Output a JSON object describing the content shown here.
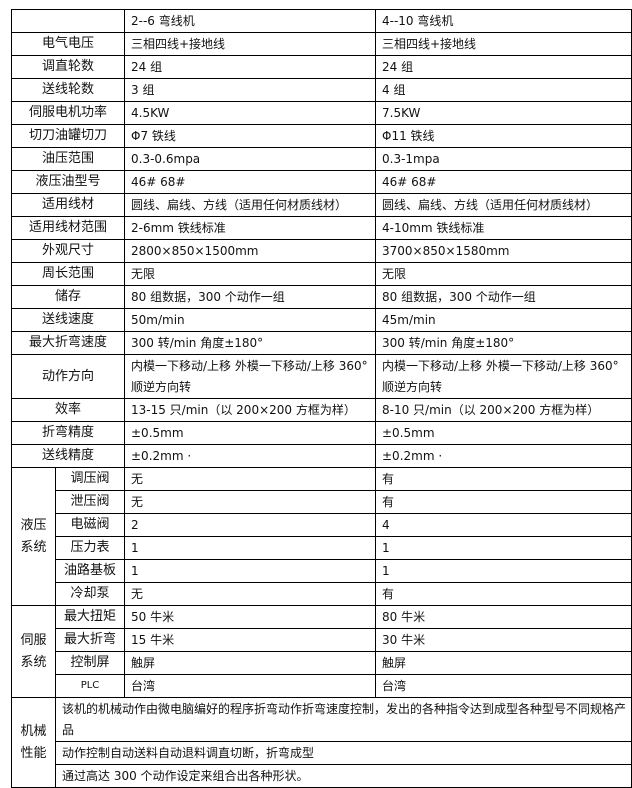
{
  "header": [
    "",
    "2--6 弯线机",
    "4--10 弯线机"
  ],
  "rows": [
    {
      "label": "电气电压",
      "a": "三相四线+接地线",
      "b": "三相四线+接地线"
    },
    {
      "label": "调直轮数",
      "a": "24 组",
      "b": "24 组"
    },
    {
      "label": "送线轮数",
      "a": "3 组",
      "b": "4 组"
    },
    {
      "label": "伺服电机功率",
      "a": "4.5KW",
      "b": "7.5KW"
    },
    {
      "label": "切刀油罐切刀",
      "a": "Φ7 铁线",
      "b": "Φ11 铁线"
    },
    {
      "label": "油压范围",
      "a": "0.3-0.6mpa",
      "b": "0.3-1mpa"
    },
    {
      "label": "液压油型号",
      "a": "46# 68#",
      "b": "46# 68#"
    },
    {
      "label": "适用线材",
      "a": "圆线、扁线、方线（适用任何材质线材）",
      "b": "圆线、扁线、方线（适用任何材质线材）"
    },
    {
      "label": "适用线材范围",
      "a": "2-6mm 铁线标准",
      "b": "4-10mm 铁线标准"
    },
    {
      "label": "外观尺寸",
      "a": "2800×850×1500mm",
      "b": "3700×850×1580mm"
    },
    {
      "label": "周长范围",
      "a": "无限",
      "b": "无限"
    },
    {
      "label": "储存",
      "a": "80 组数据，300 个动作一组",
      "b": "80 组数据，300 个动作一组"
    },
    {
      "label": "送线速度",
      "a": "50m/min",
      "b": "45m/min"
    },
    {
      "label": "最大折弯速度",
      "a": "300 转/min  角度±180°",
      "b": "300 转/min  角度±180°"
    },
    {
      "label": "动作方向",
      "a": "内模一下移动/上移 外模一下移动/上移 360° 顺逆方向转",
      "b": "内模一下移动/上移 外模一下移动/上移 360° 顺逆方向转",
      "tall": true
    },
    {
      "label": "效率",
      "a": "13-15 只/min（以 200×200 方框为样）",
      "b": "8-10 只/min（以 200×200 方框为样）"
    },
    {
      "label": "折弯精度",
      "a": "±0.5mm",
      "b": "±0.5mm"
    },
    {
      "label": "送线精度",
      "a": "±0.2mm ·",
      "b": "±0.2mm ·"
    }
  ],
  "groups": [
    {
      "name": "液压系统",
      "rows": [
        {
          "label": "调压阀",
          "a": "无",
          "b": "有"
        },
        {
          "label": "泄压阀",
          "a": "无",
          "b": "有"
        },
        {
          "label": "电磁阀",
          "a": "2",
          "b": "4"
        },
        {
          "label": "压力表",
          "a": "1",
          "b": "1"
        },
        {
          "label": "油路基板",
          "a": "1",
          "b": "1"
        },
        {
          "label": "冷却泵",
          "a": "无",
          "b": "有"
        }
      ]
    },
    {
      "name": "伺服系统",
      "rows": [
        {
          "label": "最大扭矩",
          "a": "50 牛米",
          "b": "80 牛米"
        },
        {
          "label": "最大折弯",
          "a": "15 牛米",
          "b": "30 牛米"
        },
        {
          "label": "控制屏",
          "a": "触屏",
          "b": "触屏"
        },
        {
          "label": "PLC",
          "a": "台湾",
          "b": "台湾"
        }
      ]
    }
  ],
  "mechanical": {
    "name": "机械性能",
    "lines": [
      "该机的机械动作由微电脑编好的程序折弯动作折弯速度控制，发出的各种指令达到成型各种型号不同规格产品",
      "动作控制自动送料自动退料调直切断，折弯成型",
      "通过高达 300 个动作设定来组合出各种形状。"
    ]
  }
}
